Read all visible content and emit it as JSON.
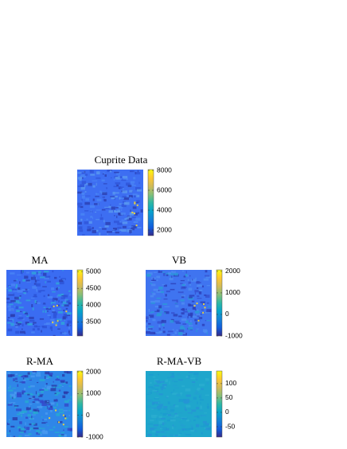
{
  "chart_data": [
    {
      "type": "image",
      "title": "Cuprite Data",
      "clim": [
        1440,
        8080
      ],
      "cticks": [
        2000,
        4000,
        6000,
        8000
      ],
      "colormap": "parula"
    },
    {
      "type": "image",
      "title": "MA",
      "clim": [
        3080,
        5050
      ],
      "cticks": [
        3500,
        4000,
        4500,
        5000
      ],
      "colormap": "parula"
    },
    {
      "type": "image",
      "title": "VB",
      "clim": [
        -1000,
        2070
      ],
      "cticks": [
        -1000,
        0,
        1000,
        2000
      ],
      "colormap": "parula"
    },
    {
      "type": "image",
      "title": "R-MA",
      "clim": [
        -1000,
        2040
      ],
      "cticks": [
        -1000,
        0,
        1000,
        2000
      ],
      "colormap": "parula"
    },
    {
      "type": "image",
      "title": "R-MA-VB",
      "clim": [
        -86,
        144
      ],
      "cticks": [
        -50,
        0,
        50,
        100
      ],
      "colormap": "parula"
    }
  ]
}
